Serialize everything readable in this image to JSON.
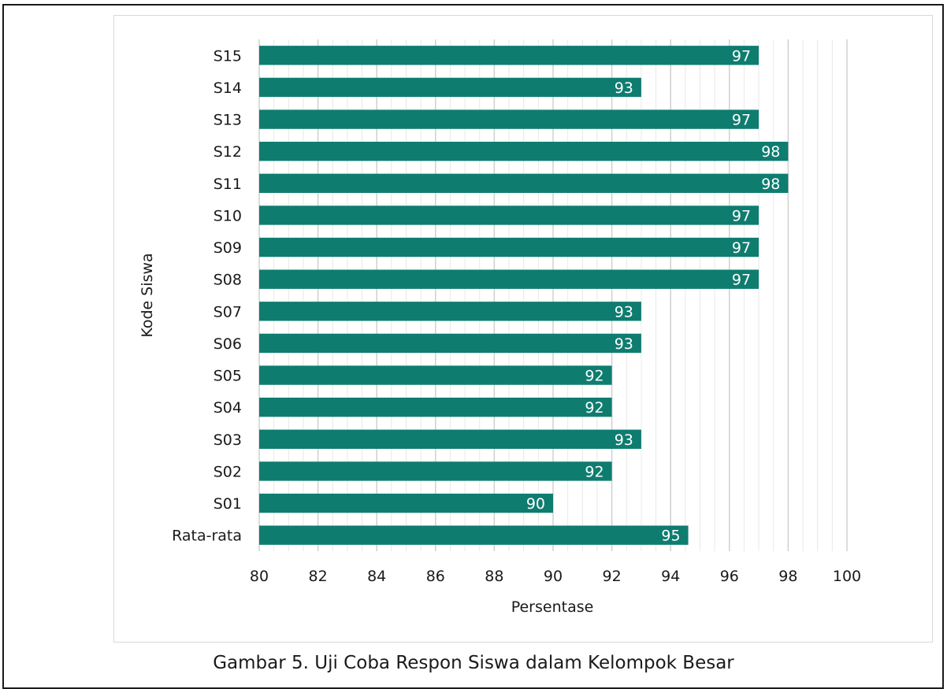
{
  "caption": "Gambar 5. Uji Coba Respon Siswa dalam Kelompok Besar",
  "colors": {
    "bar": "#0e7d70",
    "grid_major": "#d0d0d0",
    "grid_minor": "#e8e8e8",
    "text": "#1a1a1a"
  },
  "chart_data": {
    "type": "bar",
    "orientation": "horizontal",
    "categories": [
      "S15",
      "S14",
      "S13",
      "S12",
      "S11",
      "S10",
      "S09",
      "S08",
      "S07",
      "S06",
      "S05",
      "S04",
      "S03",
      "S02",
      "S01",
      "Rata-rata"
    ],
    "values": [
      97,
      93,
      97,
      98,
      98,
      97,
      97,
      97,
      93,
      93,
      92,
      92,
      93,
      92,
      90,
      94.6
    ],
    "data_labels": [
      "97",
      "93",
      "97",
      "98",
      "98",
      "97",
      "97",
      "97",
      "93",
      "93",
      "92",
      "92",
      "93",
      "92",
      "90",
      "95"
    ],
    "xlabel": "Persentase",
    "ylabel": "Kode Siswa",
    "xlim": [
      80,
      100
    ],
    "xticks": [
      80,
      82,
      84,
      86,
      88,
      90,
      92,
      94,
      96,
      98,
      100
    ],
    "xtick_labels": [
      "80",
      "82",
      "84",
      "86",
      "88",
      "90",
      "92",
      "94",
      "96",
      "98",
      "100"
    ],
    "grid": true
  }
}
